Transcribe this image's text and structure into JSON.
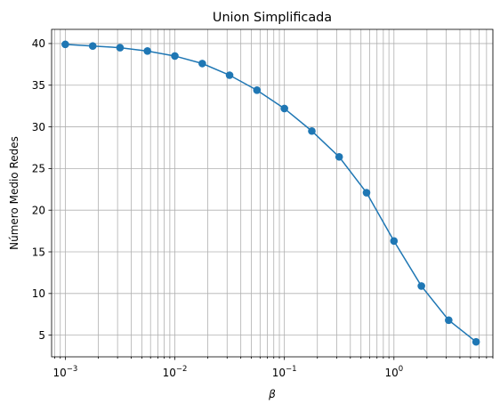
{
  "chart_data": {
    "type": "line",
    "title": "Union Simplificada",
    "xlabel": "β",
    "ylabel": "Número Medio Redes",
    "xscale": "log",
    "xlim": [
      0.00075,
      8.0
    ],
    "ylim": [
      2.4,
      41.7
    ],
    "grid": "both, major and minor",
    "x_ticks": [
      {
        "value": 0.001,
        "base": "10",
        "exp": "−3"
      },
      {
        "value": 0.01,
        "base": "10",
        "exp": "−2"
      },
      {
        "value": 0.1,
        "base": "10",
        "exp": "−1"
      },
      {
        "value": 1,
        "base": "10",
        "exp": "0"
      }
    ],
    "y_ticks": [
      5,
      10,
      15,
      20,
      25,
      30,
      35,
      40
    ],
    "series": [
      {
        "color": "#1f77b4",
        "marker": "circle",
        "x": [
          0.001,
          0.00178,
          0.00316,
          0.00562,
          0.01,
          0.0178,
          0.0316,
          0.0562,
          0.1,
          0.178,
          0.316,
          0.562,
          1.0,
          1.78,
          3.16,
          5.62
        ],
        "y": [
          39.9,
          39.7,
          39.5,
          39.1,
          38.5,
          37.6,
          36.2,
          34.4,
          32.2,
          29.5,
          26.4,
          22.1,
          16.3,
          10.9,
          6.8,
          4.2
        ]
      }
    ]
  }
}
